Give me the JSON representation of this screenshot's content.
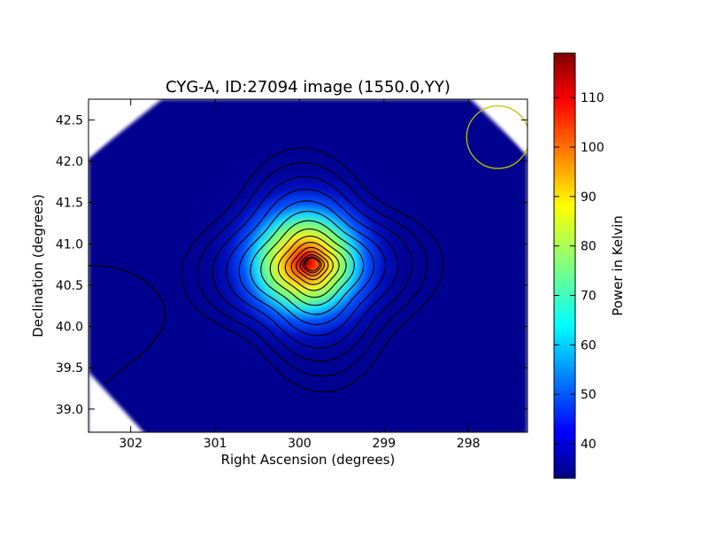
{
  "chart_data": {
    "type": "heatmap",
    "title": "CYG-A, ID:27094 image (1550.0,YY)",
    "xlabel": "Right Ascension (degrees)",
    "ylabel": "Declination (degrees)",
    "xlim": [
      302.5,
      297.3
    ],
    "ylim": [
      38.72,
      42.75
    ],
    "x_ticks": [
      "302",
      "301",
      "300",
      "299",
      "298"
    ],
    "x_tick_values": [
      302,
      301,
      300,
      299,
      298
    ],
    "y_ticks": [
      "39.0",
      "39.5",
      "40.0",
      "40.5",
      "41.0",
      "41.5",
      "42.0",
      "42.5"
    ],
    "y_tick_values": [
      39.0,
      39.5,
      40.0,
      40.5,
      41.0,
      41.5,
      42.0,
      42.5
    ],
    "source_peak": {
      "ra": 299.85,
      "dec": 40.75,
      "value": 118
    },
    "beam_circle": {
      "ra": 297.65,
      "dec": 42.29,
      "radius_deg": 0.37,
      "color": "#bfbf00"
    },
    "contour_levels": 15,
    "colormap": "jet",
    "colorbar": {
      "label": "Power in Kelvin",
      "min": 33,
      "max": 119,
      "ticks": [
        "40",
        "50",
        "60",
        "70",
        "80",
        "90",
        "100",
        "110"
      ],
      "tick_values": [
        40,
        50,
        60,
        70,
        80,
        90,
        100,
        110
      ]
    }
  }
}
